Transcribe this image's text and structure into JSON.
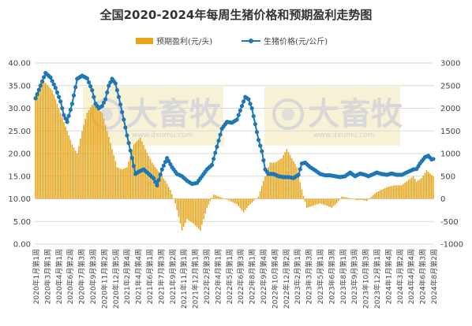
{
  "chart_data": {
    "type": "bar+line",
    "title": "全国2020-2024年每周生猪价格和预期盈利走势图",
    "legend": {
      "placement": "top-center",
      "items": [
        {
          "name": "预期盈利(元/头)",
          "kind": "bar",
          "color": "#E8A317"
        },
        {
          "name": "生猪价格(元/公斤)",
          "kind": "line",
          "color": "#1F77B4"
        }
      ]
    },
    "y_left": {
      "min": 0,
      "max": 40,
      "step": 5,
      "ticks": [
        "0.00",
        "5.00",
        "10.00",
        "15.00",
        "20.00",
        "25.00",
        "30.00",
        "35.00",
        "40.00"
      ]
    },
    "y_right": {
      "min": -1000,
      "max": 3000,
      "step": 500,
      "ticks": [
        "-1000",
        "-500",
        "0",
        "500",
        "1000",
        "1500",
        "2000",
        "2500",
        "3000"
      ]
    },
    "x_tick_labels": [
      "2020年1月第1周",
      "2020年3月第1周",
      "2020年4月第1周",
      "2020年6月第2周",
      "2020年7月第3周",
      "2020年9月第3周",
      "2020年11月第2周",
      "2020年12月第5周",
      "2021年2月第4周",
      "2021年4月第4周",
      "2021年6月第1周",
      "2021年7月第3周",
      "2021年9月第2周",
      "2021年11月第1周",
      "2021年12月第1周",
      "2022年2月第3周",
      "2022年4月第1周",
      "2022年5月第1周",
      "2022年6月第3周",
      "2022年8月第1周",
      "2022年9月第4周",
      "2022年10月第4周",
      "2022年12月第2周",
      "2023年2月第1周",
      "2023年3月第3周",
      "2023年5月第1周",
      "2023年6月第3周",
      "2023年8月第1周",
      "2023年9月第3周",
      "2023年10月第3周",
      "2023年12月第1周",
      "2024年1月第4周",
      "2024年3月第2周",
      "2024年4月第4周",
      "2024年6月第3周",
      "2024年8月第2周"
    ],
    "n_weeks": 240,
    "gap_weeks": [
      221,
      226
    ],
    "series": [
      {
        "name": "预期盈利(元/头)",
        "axis": "right",
        "color": "#E8A317",
        "keyframes": [
          [
            0,
            2300
          ],
          [
            5,
            2600
          ],
          [
            10,
            2400
          ],
          [
            14,
            2000
          ],
          [
            18,
            1600
          ],
          [
            22,
            1200
          ],
          [
            25,
            1000
          ],
          [
            28,
            1500
          ],
          [
            31,
            1900
          ],
          [
            34,
            2080
          ],
          [
            37,
            2000
          ],
          [
            40,
            1900
          ],
          [
            43,
            1500
          ],
          [
            46,
            1100
          ],
          [
            49,
            700
          ],
          [
            52,
            650
          ],
          [
            55,
            700
          ],
          [
            59,
            1200
          ],
          [
            63,
            1350
          ],
          [
            66,
            1100
          ],
          [
            70,
            800
          ],
          [
            74,
            600
          ],
          [
            78,
            400
          ],
          [
            81,
            200
          ],
          [
            84,
            -100
          ],
          [
            86,
            -400
          ],
          [
            88,
            -700
          ],
          [
            91,
            -450
          ],
          [
            95,
            -550
          ],
          [
            99,
            -700
          ],
          [
            103,
            -200
          ],
          [
            107,
            100
          ],
          [
            110,
            50
          ],
          [
            114,
            0
          ],
          [
            117,
            -50
          ],
          [
            121,
            -120
          ],
          [
            125,
            -300
          ],
          [
            128,
            -150
          ],
          [
            131,
            -50
          ],
          [
            134,
            50
          ],
          [
            137,
            400
          ],
          [
            141,
            800
          ],
          [
            144,
            800
          ],
          [
            148,
            900
          ],
          [
            151,
            1100
          ],
          [
            154,
            900
          ],
          [
            157,
            700
          ],
          [
            160,
            200
          ],
          [
            163,
            -200
          ],
          [
            167,
            -150
          ],
          [
            171,
            -100
          ],
          [
            175,
            -150
          ],
          [
            178,
            -200
          ],
          [
            181,
            -100
          ],
          [
            184,
            50
          ],
          [
            187,
            30
          ],
          [
            190,
            10
          ],
          [
            193,
            -30
          ],
          [
            196,
            -20
          ],
          [
            199,
            -50
          ],
          [
            202,
            50
          ],
          [
            205,
            150
          ],
          [
            208,
            200
          ],
          [
            212,
            270
          ],
          [
            216,
            300
          ],
          [
            219,
            300
          ],
          [
            220,
            300
          ],
          [
            227,
            500
          ],
          [
            229,
            380
          ],
          [
            232,
            460
          ],
          [
            235,
            630
          ],
          [
            238,
            530
          ],
          [
            239,
            500
          ]
        ]
      },
      {
        "name": "生猪价格(元/公斤)",
        "axis": "left",
        "color": "#1F77B4",
        "keyframes": [
          [
            0,
            32.2
          ],
          [
            3,
            35.0
          ],
          [
            6,
            37.8
          ],
          [
            9,
            36.8
          ],
          [
            12,
            34.5
          ],
          [
            15,
            31.5
          ],
          [
            17,
            28.5
          ],
          [
            19,
            27.0
          ],
          [
            22,
            31.0
          ],
          [
            25,
            36.5
          ],
          [
            28,
            37.2
          ],
          [
            31,
            36.6
          ],
          [
            34,
            34.0
          ],
          [
            36,
            31.0
          ],
          [
            38,
            30.0
          ],
          [
            40,
            30.5
          ],
          [
            42,
            32.0
          ],
          [
            44,
            35.0
          ],
          [
            46,
            36.5
          ],
          [
            48,
            35.5
          ],
          [
            50,
            32.5
          ],
          [
            53,
            27.5
          ],
          [
            55,
            24.0
          ],
          [
            58,
            19.0
          ],
          [
            60,
            15.5
          ],
          [
            62,
            16.0
          ],
          [
            65,
            16.5
          ],
          [
            68,
            15.5
          ],
          [
            71,
            14.5
          ],
          [
            73,
            13.0
          ],
          [
            76,
            16.5
          ],
          [
            79,
            19.0
          ],
          [
            82,
            17.0
          ],
          [
            85,
            15.5
          ],
          [
            88,
            15.0
          ],
          [
            91,
            14.0
          ],
          [
            94,
            13.3
          ],
          [
            97,
            13.5
          ],
          [
            100,
            15.0
          ],
          [
            103,
            16.5
          ],
          [
            106,
            17.5
          ],
          [
            109,
            21.5
          ],
          [
            112,
            25.5
          ],
          [
            115,
            27.0
          ],
          [
            118,
            26.8
          ],
          [
            121,
            27.5
          ],
          [
            124,
            30.5
          ],
          [
            126,
            32.5
          ],
          [
            128,
            32.0
          ],
          [
            130,
            30.0
          ],
          [
            132,
            26.5
          ],
          [
            134,
            23.0
          ],
          [
            136,
            20.5
          ],
          [
            138,
            16.5
          ],
          [
            140,
            15.5
          ],
          [
            143,
            15.5
          ],
          [
            146,
            15.0
          ],
          [
            149,
            14.8
          ],
          [
            152,
            14.8
          ],
          [
            155,
            14.6
          ],
          [
            158,
            15.3
          ],
          [
            160,
            17.8
          ],
          [
            162,
            18.0
          ],
          [
            165,
            17.0
          ],
          [
            168,
            16.3
          ],
          [
            171,
            15.5
          ],
          [
            174,
            15.2
          ],
          [
            177,
            15.2
          ],
          [
            180,
            15.0
          ],
          [
            183,
            14.8
          ],
          [
            186,
            15.0
          ],
          [
            189,
            15.8
          ],
          [
            192,
            15.0
          ],
          [
            195,
            15.6
          ],
          [
            198,
            15.3
          ],
          [
            200,
            15.0
          ],
          [
            202,
            15.3
          ],
          [
            205,
            15.8
          ],
          [
            208,
            15.5
          ],
          [
            211,
            15.3
          ],
          [
            214,
            15.6
          ],
          [
            217,
            15.3
          ],
          [
            220,
            15.3
          ],
          [
            227,
            16.5
          ],
          [
            229,
            16.6
          ],
          [
            231,
            17.8
          ],
          [
            234,
            19.2
          ],
          [
            236,
            19.5
          ],
          [
            238,
            18.7
          ],
          [
            239,
            18.8
          ]
        ]
      }
    ],
    "watermarks": [
      {
        "text": "大畜牧",
        "sub": "www.dxumu.com"
      },
      {
        "text": "大畜牧",
        "sub": "www.dxumu.com"
      }
    ]
  }
}
